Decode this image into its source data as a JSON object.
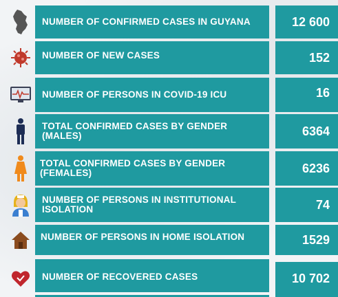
{
  "rows": [
    {
      "label": "NUMBER OF CONFIRMED CASES IN GUYANA",
      "value": "12 600",
      "icon": "guyana-map-icon"
    },
    {
      "label": "NUMBER OF NEW CASES",
      "value": "152",
      "icon": "virus-icon"
    },
    {
      "label": "NUMBER OF PERSONS  IN COVID-19 ICU",
      "value": "16",
      "icon": "icu-monitor-icon"
    },
    {
      "label": "TOTAL CONFIRMED CASES BY GENDER (MALES)",
      "value": "6364",
      "icon": "male-icon"
    },
    {
      "label": "TOTAL CONFIRMED CASES BY GENDER (FEMALES)",
      "value": "6236",
      "icon": "female-icon"
    },
    {
      "label": "NUMBER OF PERSONS IN INSTITUTIONAL ISOLATION",
      "value": "74",
      "icon": "nurse-icon"
    },
    {
      "label": "NUMBER OF PERSONS IN HOME ISOLATION",
      "value": "1529",
      "icon": "house-icon"
    },
    {
      "label": "NUMBER OF RECOVERED CASES",
      "value": "10 702",
      "icon": "heart-hand-icon"
    }
  ],
  "colors": {
    "panel": "#1f9aa0",
    "text": "#ffffff",
    "male": "#1d2d55",
    "female": "#f08a1c",
    "virus": "#c0392b",
    "house": "#8a4b1e",
    "heart": "#c0262d"
  }
}
